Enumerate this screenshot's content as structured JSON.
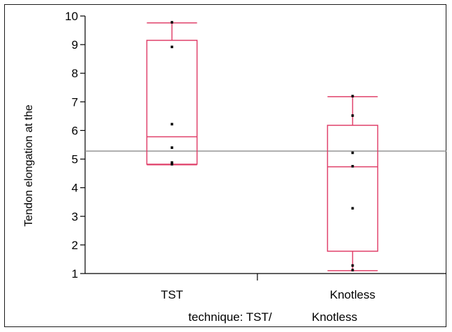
{
  "chart_data": {
    "type": "box",
    "xlabel": "technique: TST/",
    "xlabel_extra": "Knotless",
    "ylabel": "Tendon elongation at the",
    "ylim": [
      1,
      10
    ],
    "yticks": [
      "1",
      "2",
      "3",
      "4",
      "5",
      "6",
      "7",
      "8",
      "9",
      "10"
    ],
    "categories": [
      "TST",
      "Knotless"
    ],
    "reference_line": 5.28,
    "box_color": "#e0406a",
    "reference_color": "#8c8c8c",
    "grid": false,
    "boxes": [
      {
        "category": "TST",
        "min": 4.8,
        "q1": 4.82,
        "median": 5.78,
        "q3": 9.15,
        "max": 9.76,
        "points": [
          9.78,
          8.92,
          6.22,
          5.4,
          4.88,
          4.82
        ]
      },
      {
        "category": "Knotless",
        "min": 1.1,
        "q1": 1.78,
        "median": 4.73,
        "q3": 6.18,
        "max": 7.18,
        "points": [
          7.2,
          6.52,
          5.22,
          4.75,
          3.28,
          1.28,
          1.12
        ]
      }
    ]
  }
}
